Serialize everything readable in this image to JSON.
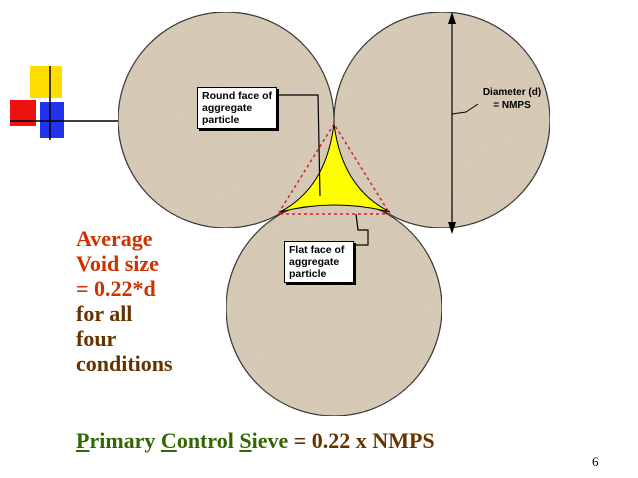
{
  "colors": {
    "aggregate": "#d8cbb5",
    "void": "#ffff00",
    "red_text": "#cc3300",
    "brown_text": "#663300",
    "green_text": "#336600",
    "deco_yellow": "#ffdd00",
    "deco_red": "#ee1111",
    "deco_blue": "#2233ee"
  },
  "callouts": {
    "round_face": [
      "Round face of",
      "aggregate",
      "particle"
    ],
    "flat_face": [
      "Flat face of",
      "aggregate",
      "particle"
    ]
  },
  "diameter_label": [
    "Diameter (d)",
    "= NMPS"
  ],
  "side_text": {
    "red_lines": [
      "Average",
      "Void size",
      "= 0.22*d"
    ],
    "brown_lines": [
      "for all",
      "four",
      "conditions"
    ]
  },
  "bottom": {
    "p_letter": "P",
    "p_rest": "rimary ",
    "c_letter": "C",
    "c_rest": "ontrol ",
    "s_letter": "S",
    "s_rest": "ieve",
    "formula": " = 0.22 x NMPS"
  },
  "page_number": "6"
}
